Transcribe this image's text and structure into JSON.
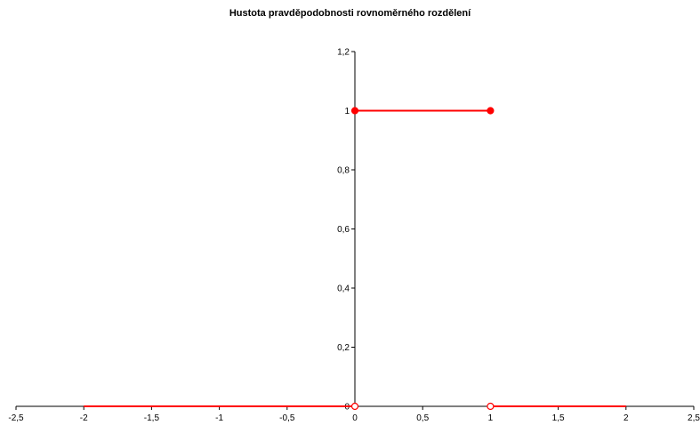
{
  "chart_data": {
    "type": "line",
    "title": "Hustota pravděpodobnosti rovnoměrného rozdělení",
    "xlabel": "",
    "ylabel": "",
    "xlim": [
      -2.5,
      2.5
    ],
    "ylim": [
      0,
      1.2
    ],
    "grid": false,
    "x_ticks": [
      -2.5,
      -2,
      -1.5,
      -1,
      -0.5,
      0,
      0.5,
      1,
      1.5,
      2,
      2.5
    ],
    "x_tick_labels": [
      "-2,5",
      "-2",
      "-1,5",
      "-1",
      "-0,5",
      "0",
      "0,5",
      "1",
      "1,5",
      "2",
      "2,5"
    ],
    "y_ticks": [
      0,
      0.2,
      0.4,
      0.6,
      0.8,
      1,
      1.2
    ],
    "y_tick_labels": [
      "0",
      "0,2",
      "0,4",
      "0,6",
      "0,8",
      "1",
      "1,2"
    ],
    "color": "#ff0000",
    "segments": [
      {
        "x": [
          -2,
          0
        ],
        "y": [
          0,
          0
        ]
      },
      {
        "x": [
          0,
          1
        ],
        "y": [
          1,
          1
        ]
      },
      {
        "x": [
          1,
          2
        ],
        "y": [
          0,
          0
        ]
      }
    ],
    "points": [
      {
        "x": 0,
        "y": 1,
        "filled": true
      },
      {
        "x": 1,
        "y": 1,
        "filled": true
      },
      {
        "x": 0,
        "y": 0,
        "filled": false
      },
      {
        "x": 1,
        "y": 0,
        "filled": false
      }
    ]
  }
}
